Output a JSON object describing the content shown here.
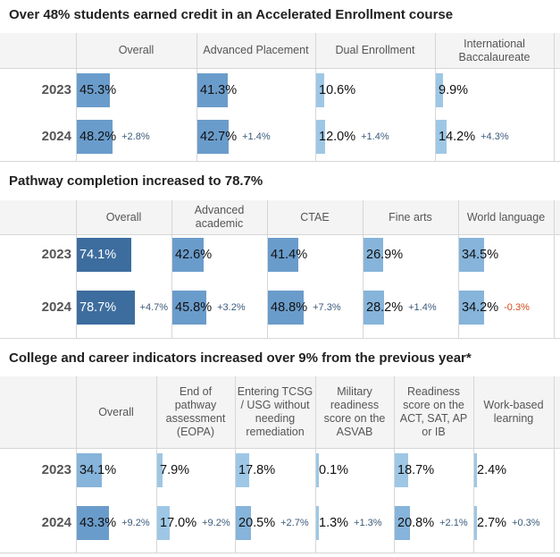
{
  "chart_data": [
    {
      "type": "table",
      "title": "Over 48% students earned credit in an Accelerated Enrollment course",
      "columns": [
        "Overall",
        "Advanced Placement",
        "Dual Enrollment",
        "International Baccalaureate"
      ],
      "years": [
        "2023",
        "2024"
      ],
      "values": {
        "2023": [
          45.3,
          41.3,
          10.6,
          9.9
        ],
        "2024": [
          48.2,
          42.7,
          12.0,
          14.2
        ]
      },
      "labels": {
        "2023": [
          "45.3%",
          "41.3%",
          "10.6%",
          "9.9%"
        ],
        "2024": [
          "48.2%",
          "42.7%",
          "12.0%",
          "14.2%"
        ]
      },
      "changes": [
        "+2.8%",
        "+1.4%",
        "+1.4%",
        "+4.3%"
      ]
    },
    {
      "type": "table",
      "title": "Pathway completion increased to 78.7%",
      "columns": [
        "Overall",
        "Advanced academic",
        "CTAE",
        "Fine arts",
        "World language"
      ],
      "years": [
        "2023",
        "2024"
      ],
      "values": {
        "2023": [
          74.1,
          42.6,
          41.4,
          26.9,
          34.5
        ],
        "2024": [
          78.7,
          45.8,
          48.8,
          28.2,
          34.2
        ]
      },
      "labels": {
        "2023": [
          "74.1%",
          "42.6%",
          "41.4%",
          "26.9%",
          "34.5%"
        ],
        "2024": [
          "78.7%",
          "45.8%",
          "48.8%",
          "28.2%",
          "34.2%"
        ]
      },
      "changes": [
        "+4.7%",
        "+3.2%",
        "+7.3%",
        "+1.4%",
        "-0.3%"
      ]
    },
    {
      "type": "table",
      "title": "College and career indicators increased over 9% from the previous year*",
      "columns": [
        "Overall",
        "End of pathway assessment (EOPA)",
        "Entering TCSG / USG without needing remediation",
        "Military readiness score on the ASVAB",
        "Readiness score on the ACT, SAT, AP or IB",
        "Work-based learning"
      ],
      "years": [
        "2023",
        "2024"
      ],
      "values": {
        "2023": [
          34.1,
          7.9,
          17.8,
          0.1,
          18.7,
          2.4
        ],
        "2024": [
          43.3,
          17.0,
          20.5,
          1.3,
          20.8,
          2.7
        ]
      },
      "labels": {
        "2023": [
          "34.1%",
          "7.9%",
          "17.8%",
          "0.1%",
          "18.7%",
          "2.4%"
        ],
        "2024": [
          "43.3%",
          "17.0%",
          "20.5%",
          "1.3%",
          "20.8%",
          "2.7%"
        ]
      },
      "changes": [
        "+9.2%",
        "+9.2%",
        "+2.7%",
        "+1.3%",
        "+2.1%",
        "+0.3%"
      ]
    }
  ]
}
